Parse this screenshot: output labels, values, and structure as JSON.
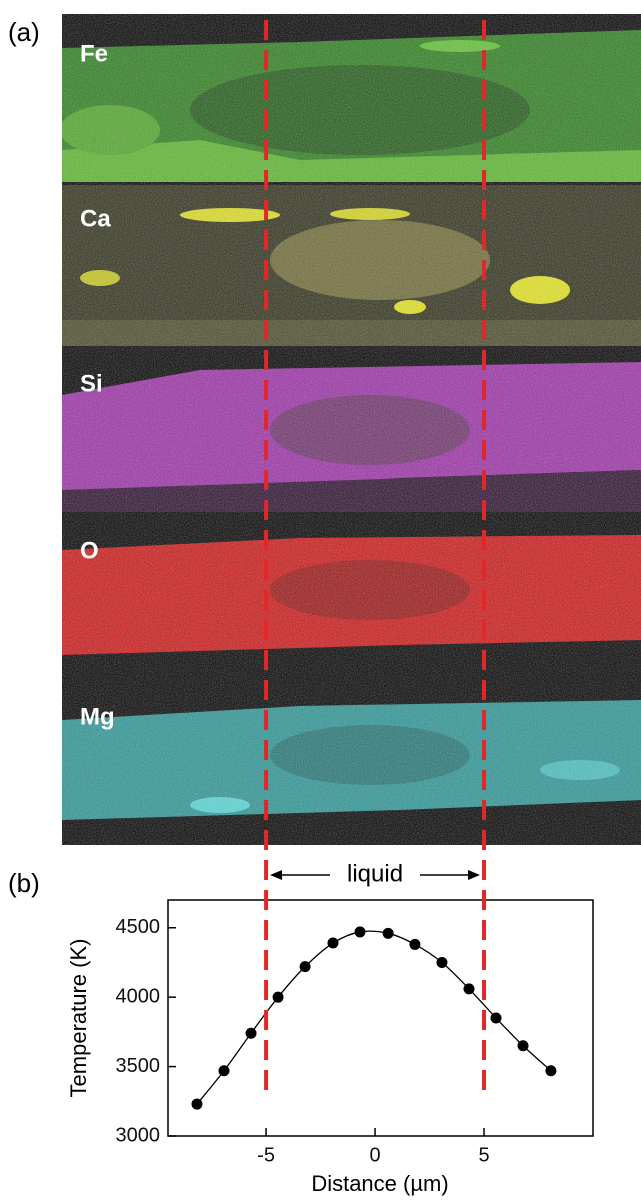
{
  "panel_labels": [
    "(a)",
    "(b)"
  ],
  "maps": [
    {
      "label": "Fe"
    },
    {
      "label": "Ca"
    },
    {
      "label": "Si"
    },
    {
      "label": "O"
    },
    {
      "label": "Mg"
    }
  ],
  "chart_data": {
    "type": "line",
    "x_label": "Distance (µm)",
    "y_label": "Temperature (K)",
    "x": [
      -8.17,
      -6.93,
      -5.69,
      -4.45,
      -3.21,
      -1.93,
      -0.69,
      0.6,
      1.83,
      3.07,
      4.31,
      5.55,
      6.79,
      8.07
    ],
    "series": [
      {
        "color": "#000000",
        "values": [
          3230,
          3470,
          3740,
          4000,
          4220,
          4390,
          4470,
          4460,
          4380,
          4250,
          4060,
          3850,
          3650,
          3470
        ]
      }
    ],
    "xlim": [
      -9.5,
      10
    ],
    "ylim": [
      3000,
      4700
    ],
    "xticks": [
      -5,
      0,
      5
    ],
    "yticks": [
      3000,
      3500,
      4000,
      4500
    ],
    "vlines": [
      -5,
      5
    ],
    "vline_color": "#e0282a",
    "annotation": "liquid"
  }
}
